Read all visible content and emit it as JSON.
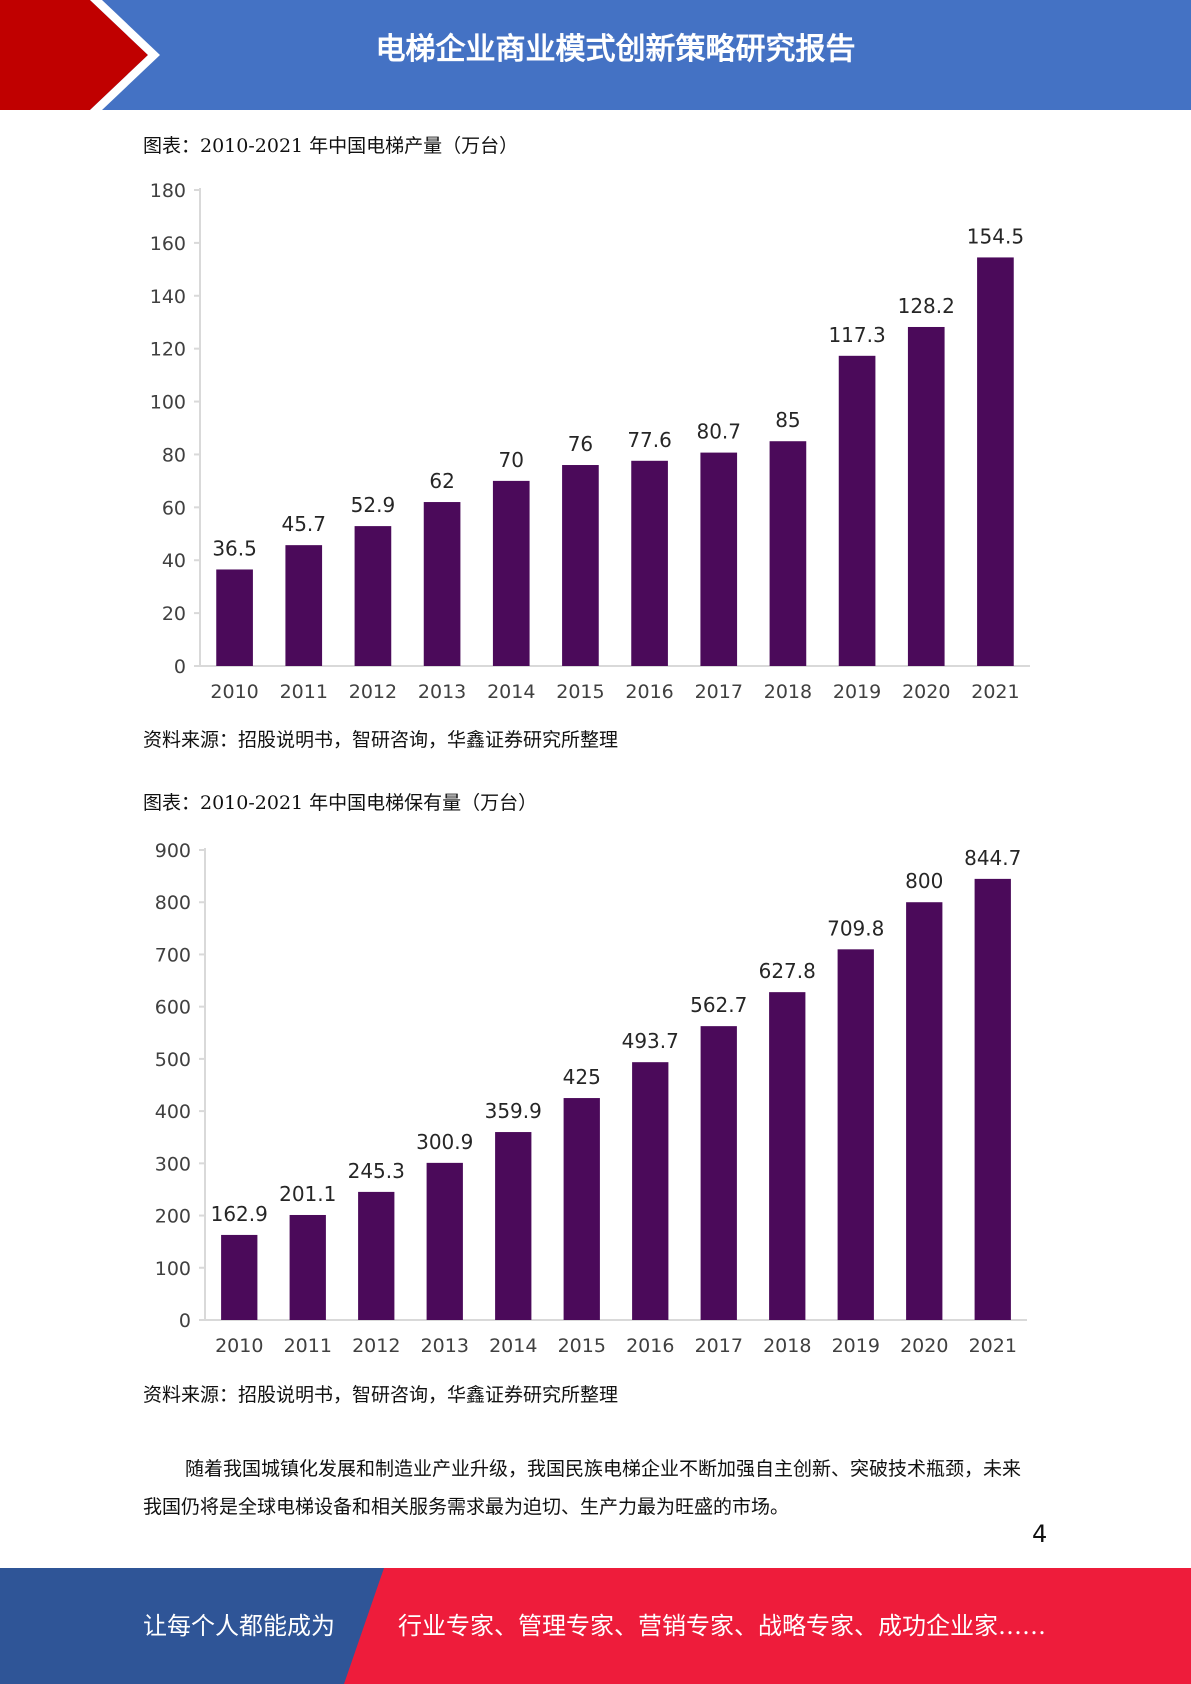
{
  "header": {
    "title": "电梯企业商业模式创新策略研究报告",
    "accent_color": "#c00000",
    "bar_color": "#4472c4"
  },
  "charts": [
    {
      "caption": "图表：2010-2021 年中国电梯产量（万台）",
      "source": "资料来源：招股说明书，智研咨询，华鑫证券研究所整理"
    },
    {
      "caption": "图表：2010-2021 年中国电梯保有量（万台）",
      "source": "资料来源：招股说明书，智研咨询，华鑫证券研究所整理"
    }
  ],
  "chart_data": [
    {
      "type": "bar",
      "title": "2010-2021 年中国电梯产量（万台）",
      "categories": [
        "2010",
        "2011",
        "2012",
        "2013",
        "2014",
        "2015",
        "2016",
        "2017",
        "2018",
        "2019",
        "2020",
        "2021"
      ],
      "values": [
        36.5,
        45.7,
        52.9,
        62,
        70,
        76,
        77.6,
        80.7,
        85,
        117.3,
        128.2,
        154.5
      ],
      "labels": [
        "36.5",
        "45.7",
        "52.9",
        "62",
        "70",
        "76",
        "77.6",
        "80.7",
        "85",
        "117.3",
        "128.2",
        "154.5"
      ],
      "ylim": [
        0,
        180
      ],
      "yticks": [
        0,
        20,
        40,
        60,
        80,
        100,
        120,
        140,
        160,
        180
      ],
      "bar_color": "#4b0a5a",
      "grid": false
    },
    {
      "type": "bar",
      "title": "2010-2021 年中国电梯保有量（万台）",
      "categories": [
        "2010",
        "2011",
        "2012",
        "2013",
        "2014",
        "2015",
        "2016",
        "2017",
        "2018",
        "2019",
        "2020",
        "2021"
      ],
      "values": [
        162.9,
        201.1,
        245.3,
        300.9,
        359.9,
        425,
        493.7,
        562.7,
        627.8,
        709.8,
        800,
        844.7
      ],
      "labels": [
        "162.9",
        "201.1",
        "245.3",
        "300.9",
        "359.9",
        "425",
        "493.7",
        "562.7",
        "627.8",
        "709.8",
        "800",
        "844.7"
      ],
      "ylim": [
        0,
        900
      ],
      "yticks": [
        0,
        100,
        200,
        300,
        400,
        500,
        600,
        700,
        800,
        900
      ],
      "bar_color": "#4b0a5a",
      "grid": false
    }
  ],
  "paragraph": "随着我国城镇化发展和制造业产业升级，我国民族电梯企业不断加强自主创新、突破技术瓶颈，未来我国仍将是全球电梯设备和相关服务需求最为迫切、生产力最为旺盛的市场。",
  "page_number": "4",
  "footer": {
    "left_text": "让每个人都能成为",
    "right_text": "行业专家、管理专家、营销专家、战略专家、成功企业家……",
    "left_color": "#2f5597",
    "right_color": "#ee1c3b"
  }
}
